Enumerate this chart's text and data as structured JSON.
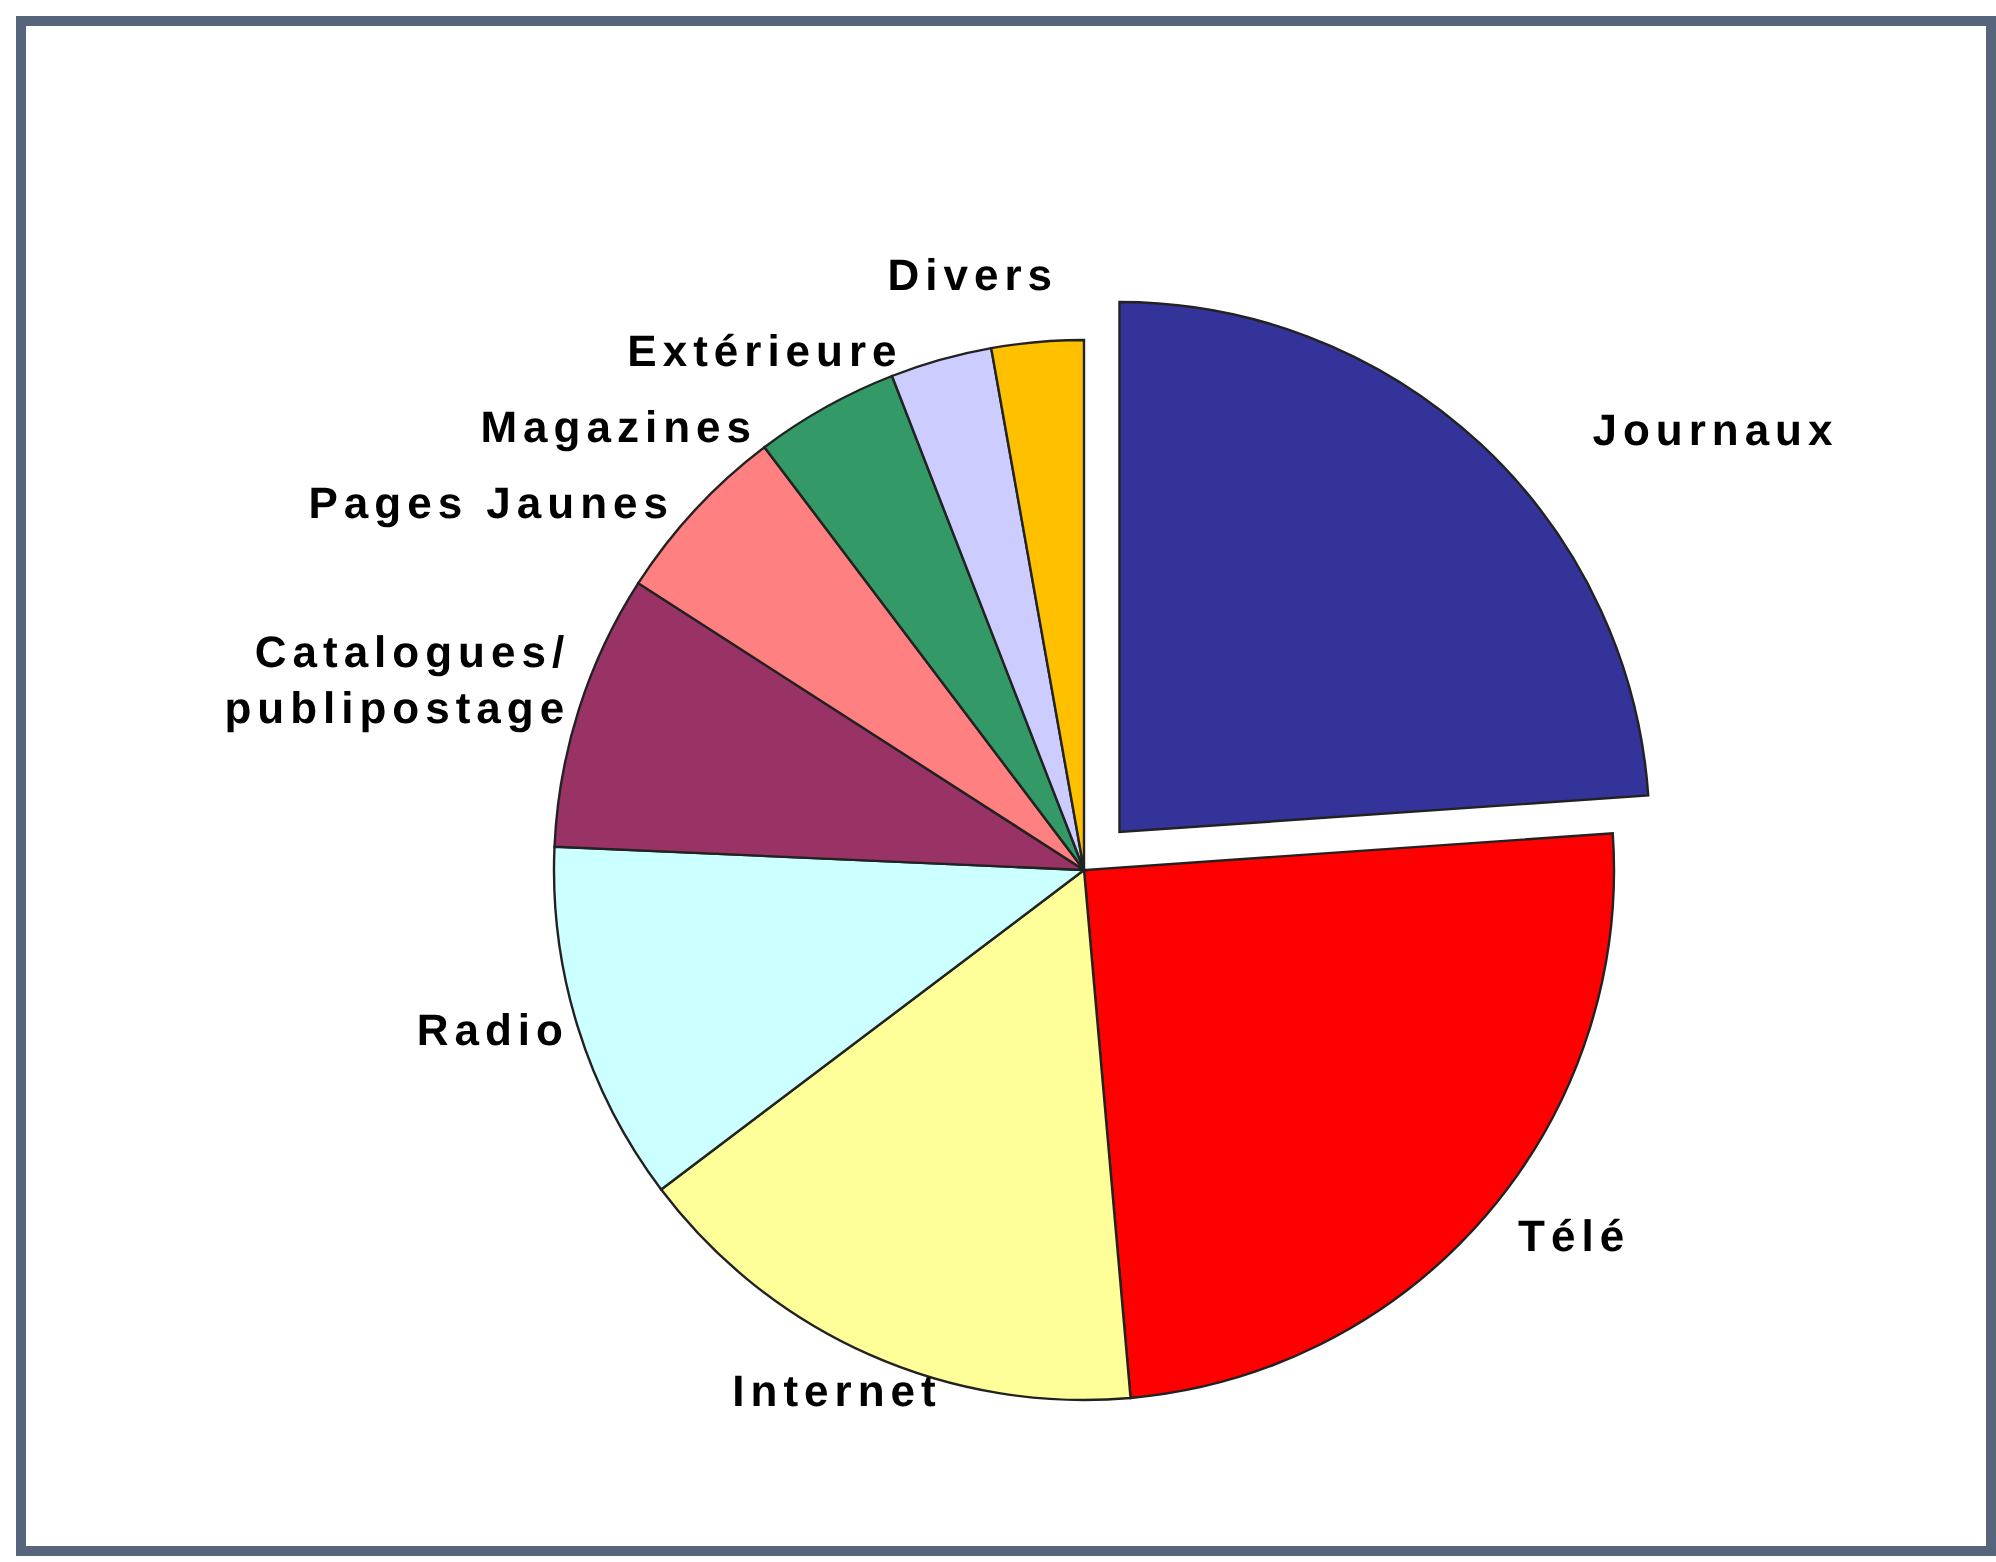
{
  "chart_data": {
    "type": "pie",
    "categories": [
      "Journaux",
      "Télé",
      "Internet",
      "Radio",
      "Catalogues/\npublipostage",
      "Pages Jaunes",
      "Magazines",
      "Extérieure",
      "Divers"
    ],
    "values": [
      23.9,
      24.7,
      16.1,
      11.0,
      8.4,
      5.6,
      4.4,
      3.1,
      2.8
    ],
    "colors": [
      "#333399",
      "#ff0000",
      "#ffff99",
      "#ccffff",
      "#993366",
      "#ff8080",
      "#339966",
      "#ccccff",
      "#ffc000"
    ]
  }
}
